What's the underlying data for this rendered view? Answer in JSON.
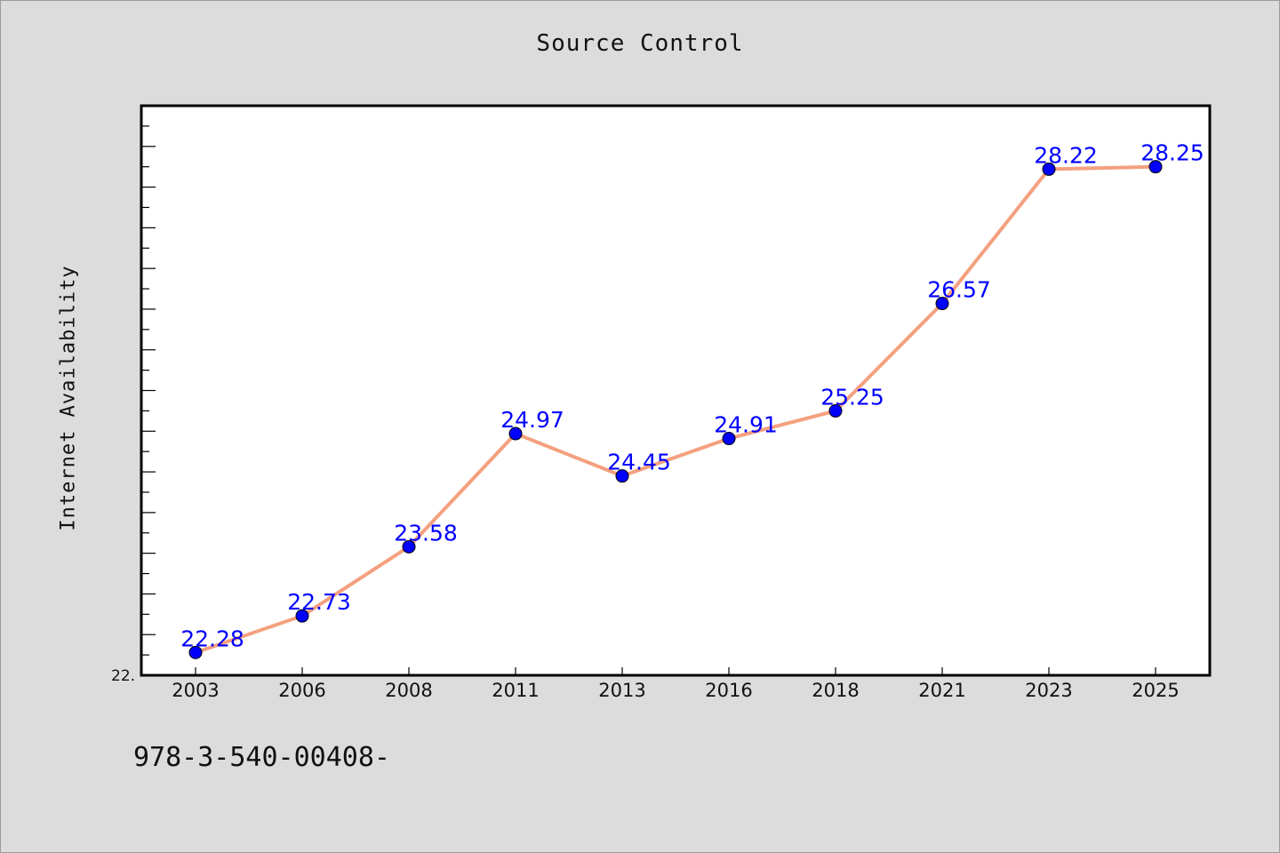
{
  "chart_data": {
    "type": "line",
    "title": "Source Control",
    "xlabel": "",
    "ylabel": "Internet Availability",
    "categories": [
      "2003",
      "2006",
      "2008",
      "2011",
      "2013",
      "2016",
      "2018",
      "2021",
      "2023",
      "2025"
    ],
    "series": [
      {
        "values": [
          22.28,
          22.73,
          23.58,
          24.97,
          24.45,
          24.91,
          25.25,
          26.57,
          28.22,
          28.25
        ]
      }
    ],
    "data_labels": [
      "22.28",
      "22.73",
      "23.58",
      "24.97",
      "24.45",
      "24.91",
      "25.25",
      "26.57",
      "28.22",
      "28.25"
    ],
    "ylim": [
      22.0,
      29.0
    ],
    "y_tick_label": "22.",
    "grid": false,
    "colors": {
      "line": "#f4a07f",
      "marker": "#0000ff",
      "label": "#0000ff",
      "background": "#dcdcdc",
      "plot_area": "#ffffff"
    }
  },
  "footnote": "978-3-540-00408-"
}
